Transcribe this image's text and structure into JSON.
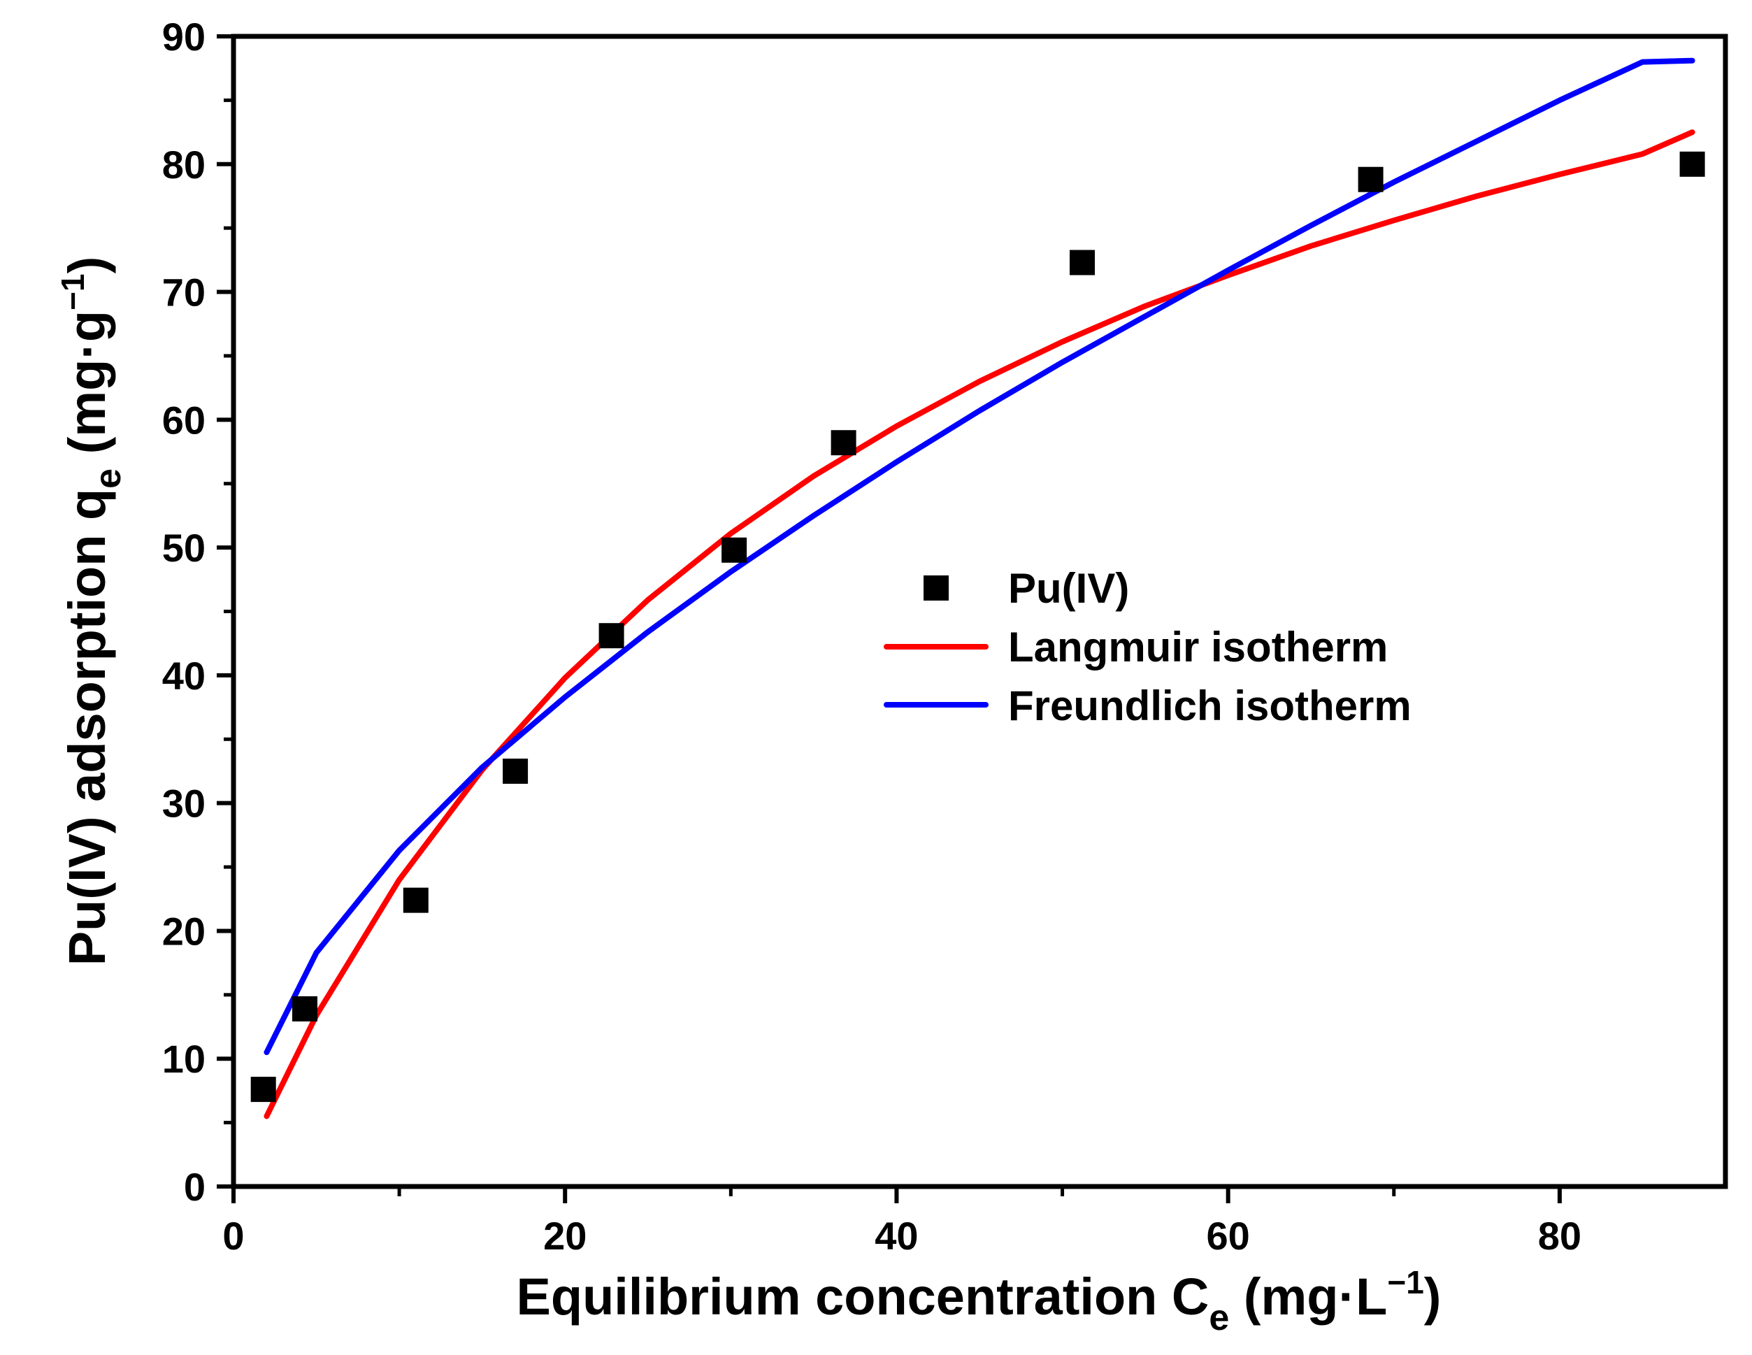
{
  "chart_data": {
    "type": "scatter",
    "xlabel": {
      "main": "Equilibrium concentration C",
      "sub": "e",
      "unit_open": " (mg·L",
      "sup": "−1",
      "unit_close": ")"
    },
    "ylabel": {
      "main": "Pu(IV) adsorption q",
      "sub": "e",
      "unit_open": " (mg·g",
      "sup": "−1",
      "unit_close": ")"
    },
    "xlim": [
      0,
      90
    ],
    "ylim": [
      0,
      90
    ],
    "xticks": [
      0,
      20,
      40,
      60,
      80
    ],
    "yticks": [
      0,
      10,
      20,
      30,
      40,
      50,
      60,
      70,
      80,
      90
    ],
    "grid": false,
    "legend_position": "center-right",
    "series": [
      {
        "name": "Pu(IV)",
        "kind": "points",
        "color": "#000000",
        "marker": "square",
        "x": [
          1.8,
          4.3,
          11.0,
          17.0,
          22.8,
          30.2,
          36.8,
          51.2,
          68.6,
          88.0
        ],
        "y": [
          7.6,
          13.9,
          22.4,
          32.5,
          43.1,
          49.8,
          58.2,
          72.3,
          78.8,
          80.0
        ]
      },
      {
        "name": "Langmuir isotherm",
        "kind": "line",
        "color": "#ff0000",
        "x": [
          2,
          5,
          10,
          15,
          20,
          25,
          30,
          35,
          40,
          45,
          50,
          55,
          60,
          65,
          70,
          75,
          80,
          85,
          88
        ],
        "y": [
          5.5,
          13.4,
          24.0,
          32.6,
          39.8,
          45.9,
          51.1,
          55.6,
          59.5,
          63.0,
          66.1,
          68.9,
          71.3,
          73.6,
          75.6,
          77.5,
          79.2,
          80.8,
          82.5
        ]
      },
      {
        "name": "Freundlich isotherm",
        "kind": "line",
        "color": "#0000ff",
        "x": [
          2,
          5,
          10,
          15,
          20,
          25,
          30,
          35,
          40,
          45,
          50,
          55,
          60,
          65,
          70,
          75,
          80,
          85,
          88
        ],
        "y": [
          10.5,
          18.3,
          26.3,
          32.8,
          38.3,
          43.4,
          48.1,
          52.5,
          56.7,
          60.7,
          64.5,
          68.1,
          71.7,
          75.2,
          78.6,
          81.8,
          85.0,
          88.0,
          88.1
        ]
      }
    ]
  }
}
